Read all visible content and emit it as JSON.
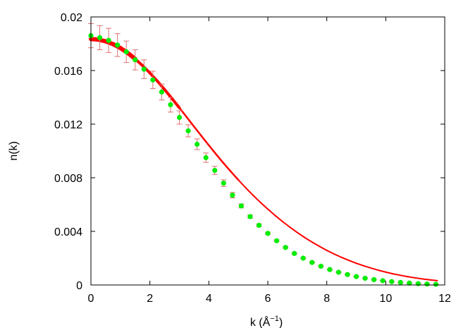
{
  "chart_data": {
    "type": "scatter",
    "title": "",
    "xlabel": "k (Å",
    "xlabel_sup": "−1",
    "xlabel_close": ")",
    "ylabel": "n(k)",
    "xlim": [
      0,
      12
    ],
    "ylim": [
      0,
      0.02
    ],
    "x_ticks": [
      "0",
      "2",
      "4",
      "6",
      "8",
      "10",
      "12"
    ],
    "y_ticks": [
      "0",
      "0.004",
      "0.008",
      "0.012",
      "0.016",
      "0.02"
    ],
    "grid": false,
    "legend": "none",
    "colors": {
      "fit_line": "#ff0000",
      "points": "#00ee00",
      "error_bars": "#e07070",
      "axes": "#000000"
    },
    "fit_line": {
      "name": "",
      "x": [
        0.0,
        0.25,
        0.5,
        0.75,
        1.0,
        1.25,
        1.5,
        1.75,
        2.0,
        2.25,
        2.5,
        2.75,
        3.0,
        3.25,
        3.5,
        3.75,
        4.0,
        4.25,
        4.5,
        4.75,
        5.0,
        5.25,
        5.5,
        5.75,
        6.0,
        6.25,
        6.5,
        6.75,
        7.0,
        7.25,
        7.5,
        7.75,
        8.0,
        8.25,
        8.5,
        8.75,
        9.0,
        9.25,
        9.5,
        9.75,
        10.0,
        10.25,
        10.5,
        10.75,
        11.0,
        11.25,
        11.5,
        11.75
      ],
      "y": [
        0.01835,
        0.01831,
        0.01818,
        0.01797,
        0.01768,
        0.01731,
        0.01687,
        0.01637,
        0.01582,
        0.01522,
        0.01458,
        0.01391,
        0.01322,
        0.01252,
        0.01181,
        0.01111,
        0.01042,
        0.00974,
        0.00908,
        0.00845,
        0.00784,
        0.00725,
        0.00669,
        0.00616,
        0.00566,
        0.00518,
        0.00473,
        0.00431,
        0.00391,
        0.00354,
        0.0032,
        0.00288,
        0.00258,
        0.00231,
        0.00206,
        0.00183,
        0.00162,
        0.00143,
        0.00126,
        0.0011,
        0.00096,
        0.00083,
        0.00072,
        0.00062,
        0.00053,
        0.00045,
        0.00038,
        0.00032
      ]
    },
    "series": [
      {
        "name": "",
        "x": [
          0.0,
          0.3,
          0.6,
          0.9,
          1.2,
          1.5,
          1.8,
          2.1,
          2.4,
          2.7,
          3.0,
          3.3,
          3.6,
          3.9,
          4.2,
          4.5,
          4.8,
          5.1,
          5.4,
          5.7,
          6.0,
          6.3,
          6.6,
          6.9,
          7.2,
          7.5,
          7.8,
          8.1,
          8.4,
          8.7,
          9.0,
          9.3,
          9.6,
          9.9,
          10.2,
          10.5,
          10.8,
          11.1,
          11.4,
          11.7
        ],
        "y": [
          0.0186,
          0.01845,
          0.01825,
          0.0179,
          0.0174,
          0.0168,
          0.0161,
          0.0153,
          0.0144,
          0.01345,
          0.0125,
          0.0115,
          0.0105,
          0.0095,
          0.00855,
          0.0076,
          0.0067,
          0.0059,
          0.0051,
          0.00445,
          0.00385,
          0.0033,
          0.0028,
          0.00235,
          0.002,
          0.00168,
          0.0014,
          0.00115,
          0.00095,
          0.00078,
          0.00063,
          0.0005,
          0.0004,
          0.00032,
          0.00025,
          0.00019,
          0.00014,
          0.0001,
          7e-05,
          5e-05
        ],
        "error": [
          0.0009,
          0.0009,
          0.0009,
          0.00085,
          0.0008,
          0.00075,
          0.0007,
          0.00065,
          0.0006,
          0.00055,
          0.0005,
          0.00045,
          0.0004,
          0.00035,
          0.0003,
          0.00025,
          0.0002,
          0.00015,
          0.00012,
          0.0001,
          8e-05,
          7e-05,
          6e-05,
          5e-05,
          4e-05,
          4e-05,
          3e-05,
          3e-05,
          3e-05,
          2e-05,
          2e-05,
          2e-05,
          2e-05,
          2e-05,
          2e-05,
          2e-05,
          2e-05,
          2e-05,
          2e-05,
          2e-05
        ]
      }
    ]
  }
}
